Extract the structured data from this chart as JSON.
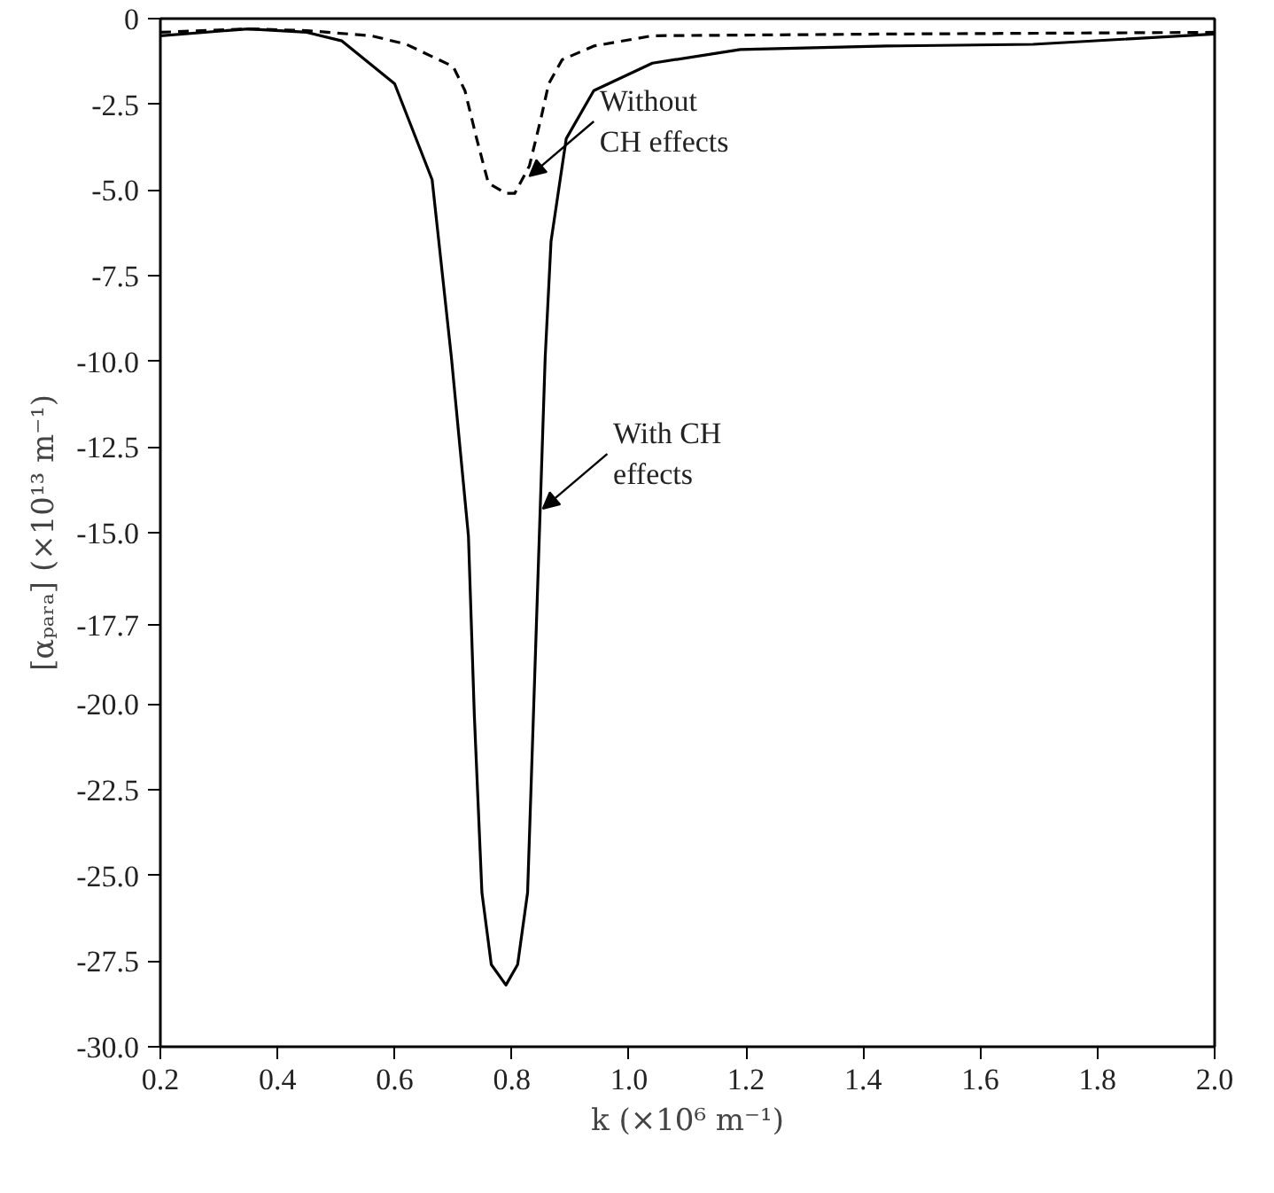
{
  "chart_data": {
    "type": "line",
    "xlabel": "k (×10⁶ m⁻¹)",
    "ylabel": "[αₚₐᵣₐ] (×10¹³ m⁻¹)",
    "xlim": [
      0.2,
      2.0
    ],
    "ylim": [
      -30,
      0
    ],
    "xticks": [
      0.2,
      0.4,
      0.6,
      0.8,
      {
        "value": 1,
        "label": "1.0"
      },
      1.2,
      1.4,
      1.6,
      1.8,
      {
        "value": 2,
        "label": "2.0"
      }
    ],
    "yticks": [
      0,
      -2.5,
      {
        "value": -5,
        "label": "-5.0"
      },
      -7.5,
      {
        "value": -10,
        "label": "-10.0"
      },
      -12.5,
      {
        "value": -15,
        "label": "-15.0"
      },
      -17.7,
      {
        "value": -20,
        "label": "-20.0"
      },
      -22.5,
      {
        "value": -25,
        "label": "-25.0"
      },
      -27.5,
      {
        "value": -30,
        "label": "-30.0"
      }
    ],
    "series": [
      {
        "color": "#000000",
        "line_style": "solid",
        "x": [
          0.2,
          0.35,
          0.45,
          0.51,
          0.6,
          0.664,
          0.697,
          0.726,
          0.736,
          0.749,
          0.765,
          0.79,
          0.81,
          0.827,
          0.837,
          0.847,
          0.857,
          0.867,
          0.893,
          0.94,
          1.04,
          1.19,
          1.44,
          1.69,
          2.0
        ],
        "values": [
          -0.5,
          -0.3,
          -0.4,
          -0.65,
          -1.9,
          -4.7,
          -9.9,
          -15.1,
          -20.3,
          -25.5,
          -27.6,
          -28.2,
          -27.6,
          -25.5,
          -20.3,
          -15.1,
          -9.9,
          -6.5,
          -3.5,
          -2.1,
          -1.3,
          -0.9,
          -0.8,
          -0.75,
          -0.45
        ]
      },
      {
        "color": "#000000",
        "line_style": "dashed",
        "x": [
          0.2,
          0.35,
          0.45,
          0.56,
          0.62,
          0.7,
          0.72,
          0.74,
          0.76,
          0.79,
          0.805,
          0.83,
          0.85,
          0.863,
          0.886,
          0.94,
          1.04,
          1.44,
          2.0
        ],
        "values": [
          -0.4,
          -0.3,
          -0.35,
          -0.5,
          -0.75,
          -1.4,
          -2.1,
          -3.5,
          -4.8,
          -5.1,
          -5.1,
          -4.3,
          -2.9,
          -1.9,
          -1.2,
          -0.8,
          -0.5,
          -0.45,
          -0.4
        ]
      }
    ],
    "annotations": [
      {
        "text": "Without\nCH effects",
        "x": 0.83,
        "y": -4.6
      },
      {
        "text": "With CH\neffects",
        "x": 0.853,
        "y": -14.3
      }
    ]
  }
}
